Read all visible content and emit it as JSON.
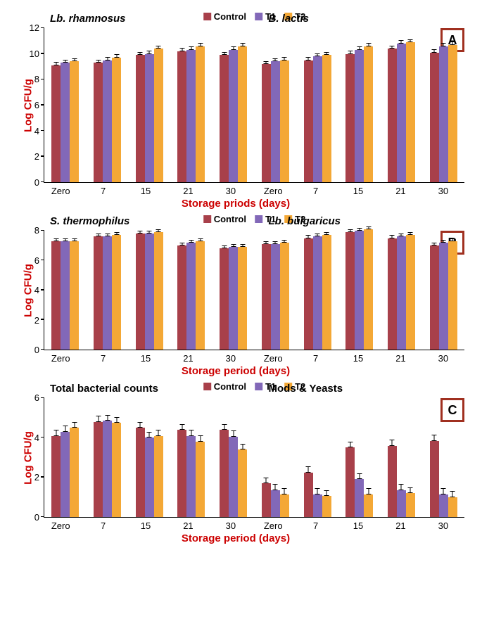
{
  "colors": {
    "control": "#a8404a",
    "t1": "#8268b8",
    "t2": "#f4a836",
    "axis_label": "#cc0000",
    "badge_border": "#a03020"
  },
  "legend": {
    "control": "Control",
    "t1": "T1",
    "t2": "T2"
  },
  "x_categories": [
    "Zero",
    "7",
    "15",
    "21",
    "30"
  ],
  "panelA": {
    "badge": "A",
    "ylabel": "Log CFU/g",
    "xlabel": "Storage priods (days)",
    "ymax": 12,
    "ystep": 2,
    "left_title": "Lb. rhamnosus",
    "right_title": "B. lactis",
    "left_title_style": "italic",
    "right_title_style": "italic",
    "left": [
      {
        "c": 9.1,
        "t1": 9.3,
        "t2": 9.4
      },
      {
        "c": 9.3,
        "t1": 9.5,
        "t2": 9.7
      },
      {
        "c": 9.9,
        "t1": 10.0,
        "t2": 10.4
      },
      {
        "c": 10.2,
        "t1": 10.3,
        "t2": 10.6
      },
      {
        "c": 9.9,
        "t1": 10.3,
        "t2": 10.6
      }
    ],
    "right": [
      {
        "c": 9.2,
        "t1": 9.4,
        "t2": 9.5
      },
      {
        "c": 9.5,
        "t1": 9.8,
        "t2": 9.9
      },
      {
        "c": 10.0,
        "t1": 10.3,
        "t2": 10.6
      },
      {
        "c": 10.4,
        "t1": 10.8,
        "t2": 10.9
      },
      {
        "c": 10.1,
        "t1": 10.6,
        "t2": 10.7
      }
    ],
    "err": 0.25
  },
  "panelB": {
    "badge": "B",
    "ylabel": "Log CFU/g",
    "xlabel": "Storage period (days)",
    "ymax": 8,
    "ystep": 2,
    "left_title": "S. thermophilus",
    "right_title": "Lb. bulgaricus",
    "left_title_style": "italic",
    "right_title_style": "italic",
    "left": [
      {
        "c": 7.3,
        "t1": 7.3,
        "t2": 7.3
      },
      {
        "c": 7.6,
        "t1": 7.6,
        "t2": 7.7
      },
      {
        "c": 7.8,
        "t1": 7.8,
        "t2": 7.9
      },
      {
        "c": 7.0,
        "t1": 7.2,
        "t2": 7.3
      },
      {
        "c": 6.8,
        "t1": 6.9,
        "t2": 6.9
      }
    ],
    "right": [
      {
        "c": 7.1,
        "t1": 7.1,
        "t2": 7.2
      },
      {
        "c": 7.5,
        "t1": 7.6,
        "t2": 7.7
      },
      {
        "c": 7.9,
        "t1": 8.0,
        "t2": 8.1
      },
      {
        "c": 7.5,
        "t1": 7.6,
        "t2": 7.7
      },
      {
        "c": 7.0,
        "t1": 7.2,
        "t2": 7.3
      }
    ],
    "err": 0.2
  },
  "panelC": {
    "badge": "C",
    "ylabel": "Log CFU/g",
    "xlabel": "Storage period (days)",
    "ymax": 6,
    "ystep": 2,
    "left_title": "Total bacterial counts",
    "right_title": "Mods & Yeasts",
    "left_title_style": "normal",
    "right_title_style": "normal",
    "left": [
      {
        "c": 4.1,
        "t1": 4.3,
        "t2": 4.5
      },
      {
        "c": 4.8,
        "t1": 4.85,
        "t2": 4.75
      },
      {
        "c": 4.5,
        "t1": 4.0,
        "t2": 4.1
      },
      {
        "c": 4.4,
        "t1": 4.1,
        "t2": 3.8
      },
      {
        "c": 4.4,
        "t1": 4.05,
        "t2": 3.4
      }
    ],
    "right": [
      {
        "c": 1.7,
        "t1": 1.35,
        "t2": 1.15
      },
      {
        "c": 2.25,
        "t1": 1.15,
        "t2": 1.05
      },
      {
        "c": 3.5,
        "t1": 1.9,
        "t2": 1.15
      },
      {
        "c": 3.6,
        "t1": 1.35,
        "t2": 1.2
      },
      {
        "c": 3.85,
        "t1": 1.15,
        "t2": 1.0
      }
    ],
    "err": 0.3
  }
}
